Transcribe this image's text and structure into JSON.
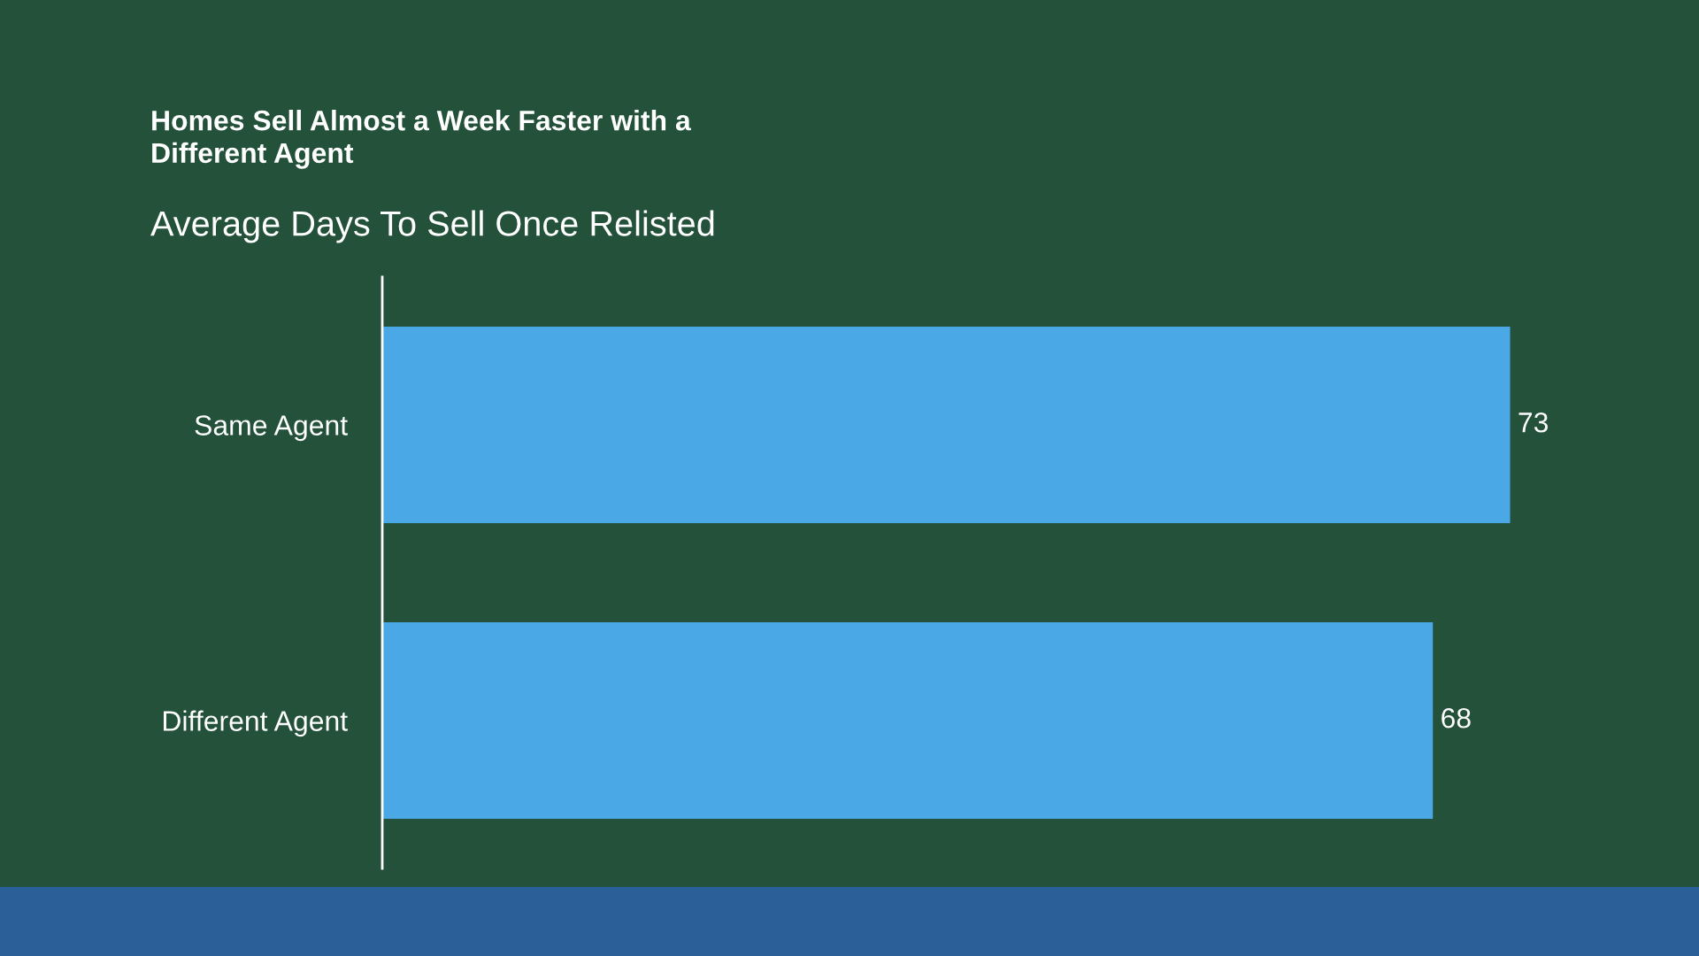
{
  "chart_data": {
    "type": "bar",
    "orientation": "horizontal",
    "title": "Homes Sell Almost a Week Faster with a Different Agent",
    "subtitle": "Average Days To Sell Once Relisted",
    "categories": [
      "Same Agent",
      "Different Agent"
    ],
    "values": [
      73,
      68
    ],
    "color": "#4aa8e6",
    "data_labels": true,
    "grid": false,
    "legend": false
  }
}
